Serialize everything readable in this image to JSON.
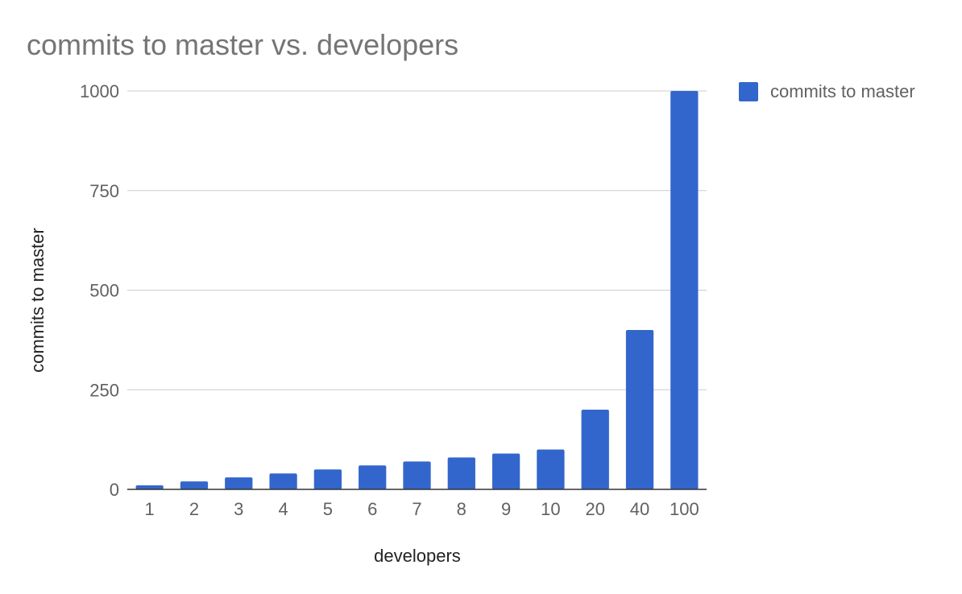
{
  "chart_data": {
    "type": "bar",
    "title": "commits to master vs. developers",
    "xlabel": "developers",
    "ylabel": "commits to master",
    "categories": [
      "1",
      "2",
      "3",
      "4",
      "5",
      "6",
      "7",
      "8",
      "9",
      "10",
      "20",
      "40",
      "100"
    ],
    "series": [
      {
        "name": "commits to master",
        "color": "#3366cc",
        "values": [
          10,
          20,
          30,
          40,
          50,
          60,
          70,
          80,
          90,
          100,
          200,
          400,
          1000
        ]
      }
    ],
    "ylim": [
      0,
      1000
    ],
    "yticks": [
      "0",
      "250",
      "500",
      "750",
      "1000"
    ],
    "grid": true,
    "legend_position": "right",
    "colors": {
      "grid": "#cccccc",
      "baseline": "#333333"
    }
  }
}
